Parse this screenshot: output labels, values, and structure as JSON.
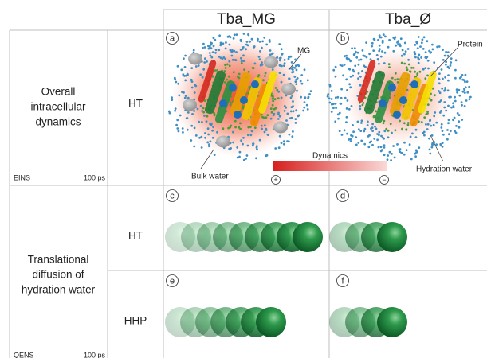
{
  "header": {
    "columns": [
      "Tba_MG",
      "Tba_Ø"
    ]
  },
  "rows": [
    {
      "group": [
        "Overall",
        "intracellular",
        "dynamics"
      ],
      "condition": "HT",
      "method": "EINS",
      "timescale": "100 ps"
    },
    {
      "group": [
        "Translational",
        "diffusion of",
        "hydration water"
      ],
      "condition": "HT"
    },
    {
      "condition": "HHP",
      "method": "QENS",
      "timescale": "100 ps"
    }
  ],
  "panels": [
    "a",
    "b",
    "c",
    "d",
    "e",
    "f"
  ],
  "annotations": {
    "mg": "MG",
    "protein": "Protein",
    "bulk_water": "Bulk water",
    "hydration_water": "Hydration water",
    "dynamics": "Dynamics",
    "plus": "+",
    "minus": "−"
  }
}
